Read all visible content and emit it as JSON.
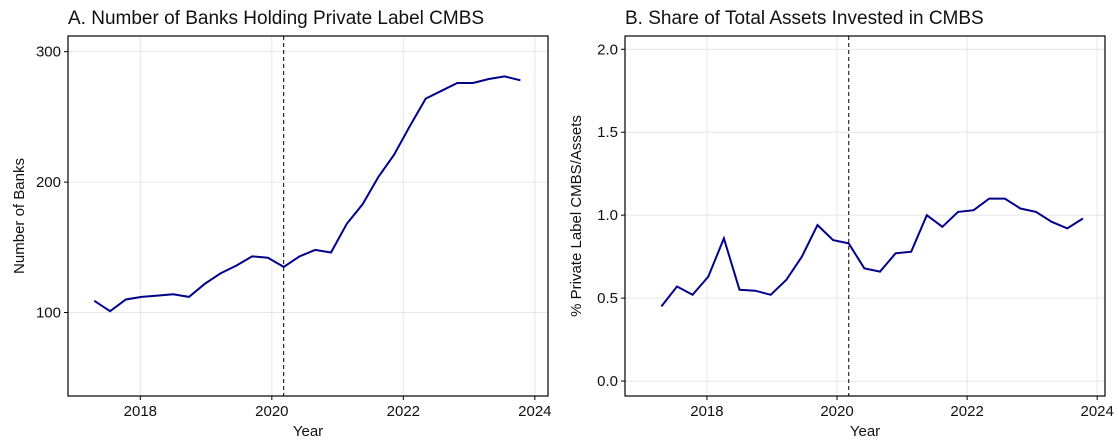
{
  "chart_data": [
    {
      "type": "line",
      "title": "A. Number of Banks Holding Private Label CMBS",
      "x_label": "Year",
      "y_label": "Number of Banks",
      "x": [
        2017.3,
        2017.54,
        2017.78,
        2018.02,
        2018.26,
        2018.5,
        2018.74,
        2018.98,
        2019.22,
        2019.46,
        2019.7,
        2019.94,
        2020.18,
        2020.42,
        2020.66,
        2020.9,
        2021.14,
        2021.38,
        2021.62,
        2021.86,
        2022.1,
        2022.34,
        2022.58,
        2022.82,
        2023.06,
        2023.3,
        2023.54,
        2023.78
      ],
      "series": [
        {
          "color": "#00008b",
          "values": [
            109,
            101,
            110,
            112,
            113,
            114,
            112,
            122,
            130,
            136,
            143,
            142,
            135,
            143,
            148,
            146,
            168,
            183,
            204,
            221,
            243,
            264,
            270,
            276,
            276,
            279,
            281,
            278
          ]
        }
      ],
      "xlim": [
        2016.9,
        2024.2
      ],
      "xticks": [
        2018,
        2020,
        2022,
        2024
      ],
      "ylim": [
        36,
        312
      ],
      "yticks": [
        100,
        200,
        300
      ],
      "vline": 2020.18,
      "grid": true
    },
    {
      "type": "line",
      "title": "B. Share of Total Assets Invested in CMBS",
      "x_label": "Year",
      "y_label": "% Private Label CMBS/Assets",
      "x": [
        2017.3,
        2017.54,
        2017.78,
        2018.02,
        2018.26,
        2018.5,
        2018.74,
        2018.98,
        2019.22,
        2019.46,
        2019.7,
        2019.94,
        2020.18,
        2020.42,
        2020.66,
        2020.9,
        2021.14,
        2021.38,
        2021.62,
        2021.86,
        2022.1,
        2022.34,
        2022.58,
        2022.82,
        2023.06,
        2023.3,
        2023.54,
        2023.78
      ],
      "series": [
        {
          "color": "#00008b",
          "values": [
            0.45,
            0.57,
            0.52,
            0.63,
            0.86,
            0.55,
            0.545,
            0.52,
            0.61,
            0.75,
            0.94,
            0.85,
            0.83,
            0.68,
            0.66,
            0.77,
            0.78,
            1.0,
            0.93,
            1.02,
            1.03,
            1.1,
            1.1,
            1.04,
            1.02,
            0.96,
            0.92,
            0.98
          ]
        }
      ],
      "xlim": [
        2016.74,
        2024.12
      ],
      "xticks": [
        2018,
        2020,
        2022,
        2024
      ],
      "ylim": [
        -0.09,
        2.08
      ],
      "yticks": [
        {
          "value": 0,
          "label": "0.0"
        },
        0.5,
        {
          "value": 1,
          "label": "1.0"
        },
        1.5,
        {
          "value": 2,
          "label": "2.0"
        }
      ],
      "vline": 2020.18,
      "grid": true
    }
  ]
}
